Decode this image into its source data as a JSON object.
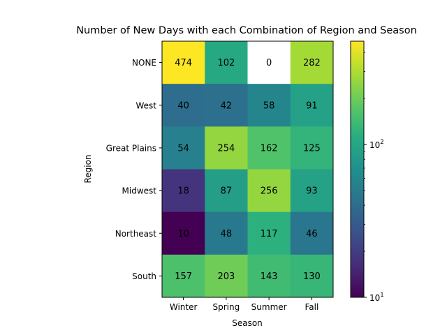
{
  "chart_data": {
    "type": "heatmap",
    "title": "Number of New Days with each Combination of Region and Season",
    "xlabel": "Season",
    "ylabel": "Region",
    "x_categories": [
      "Winter",
      "Spring",
      "Summer",
      "Fall"
    ],
    "y_categories": [
      "NONE",
      "West",
      "Great Plains",
      "Midwest",
      "Northeast",
      "South"
    ],
    "values": [
      [
        474,
        102,
        0,
        282
      ],
      [
        40,
        42,
        58,
        91
      ],
      [
        54,
        254,
        162,
        125
      ],
      [
        18,
        87,
        256,
        93
      ],
      [
        10,
        48,
        117,
        46
      ],
      [
        157,
        203,
        143,
        130
      ]
    ],
    "colormap": "viridis",
    "color_scale": "log",
    "color_range": [
      10,
      474
    ],
    "zero_cell_color": "#ffffff",
    "colorbar": {
      "scale": "log",
      "major_ticks": [
        10,
        100
      ],
      "major_tick_labels": [
        "10^1",
        "10^2"
      ]
    }
  }
}
